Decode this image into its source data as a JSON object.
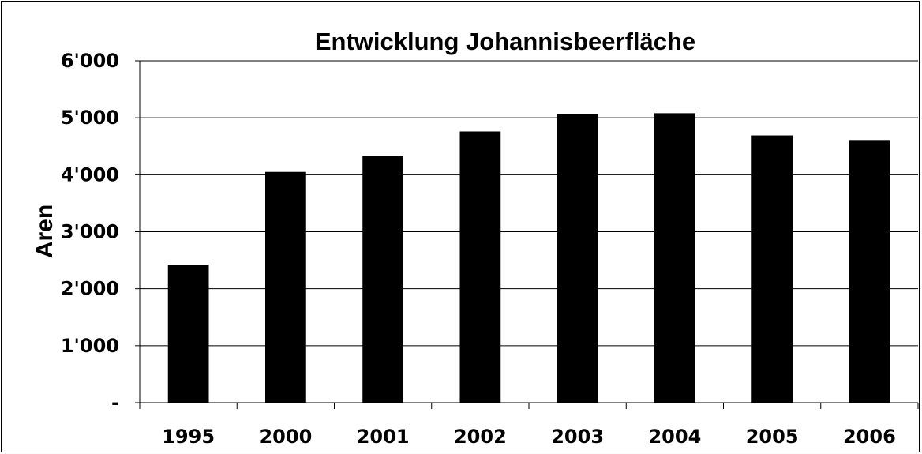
{
  "chart_data": {
    "type": "bar",
    "title": "Entwicklung Johannisbeerfläche",
    "xlabel": "",
    "ylabel": "Aren",
    "categories": [
      "1995",
      "2000",
      "2001",
      "2002",
      "2003",
      "2004",
      "2005",
      "2006"
    ],
    "values": [
      2420,
      4050,
      4330,
      4760,
      5070,
      5080,
      4690,
      4610
    ],
    "ylim": [
      0,
      6000
    ],
    "yticks": [
      0,
      1000,
      2000,
      3000,
      4000,
      5000,
      6000
    ],
    "ytick_labels": [
      "-",
      "1'000",
      "2'000",
      "3'000",
      "4'000",
      "5'000",
      "6'000"
    ],
    "grid": true,
    "legend": "none",
    "bar_color": "#000000"
  }
}
